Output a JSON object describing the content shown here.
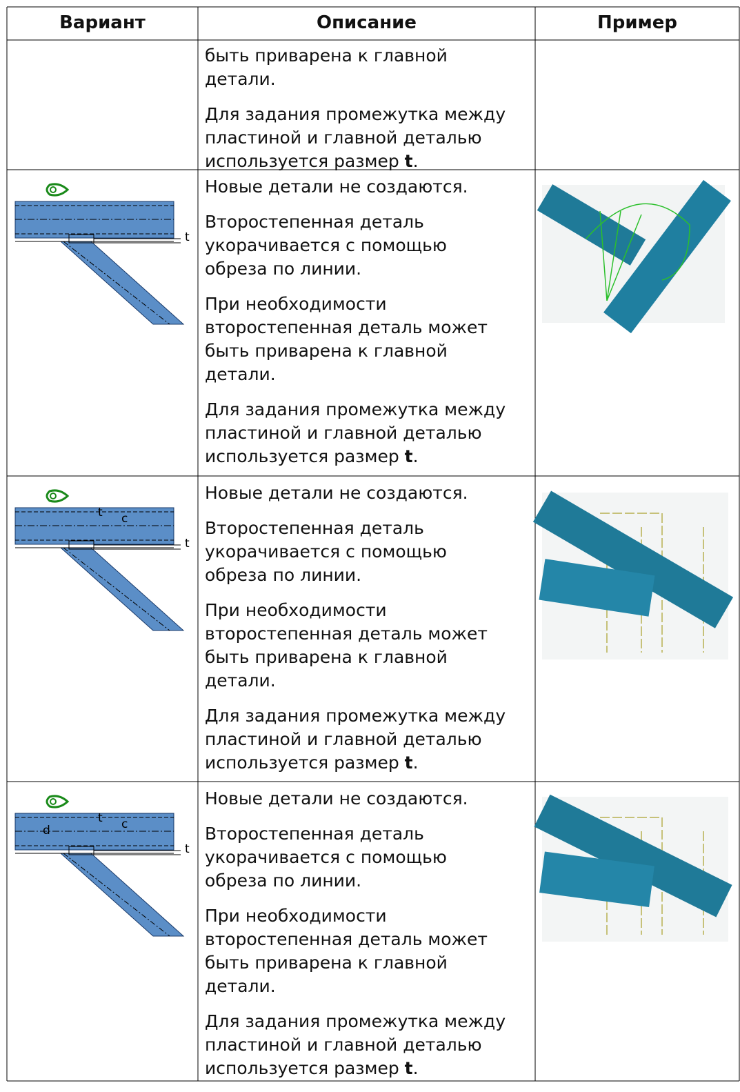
{
  "table": {
    "header": [
      "Вариант",
      "Описание",
      "Пример"
    ],
    "rows": [
      {
        "description": [
          {
            "lines": [
              "быть приварена к главной",
              "детали."
            ]
          },
          {
            "lines": [
              "Для задания промежутка между",
              "пластиной и главной деталью",
              "используется размер "
            ],
            "bold": "t",
            "after": "."
          }
        ]
      },
      {
        "variant_labels": [
          "t"
        ],
        "description": [
          {
            "lines": [
              "Новые детали не создаются."
            ]
          },
          {
            "lines": [
              "Второстепенная деталь",
              "укорачивается с помощью",
              "обреза по линии."
            ]
          },
          {
            "lines": [
              "При необходимости",
              "второстепенная деталь может",
              "быть приварена к главной",
              "детали."
            ]
          },
          {
            "lines": [
              "Для задания промежутка между",
              "пластиной и главной деталью",
              "используется размер "
            ],
            "bold": "t",
            "after": "."
          }
        ]
      },
      {
        "variant_labels": [
          "t",
          "c",
          "t"
        ],
        "description": [
          {
            "lines": [
              "Новые детали не создаются."
            ]
          },
          {
            "lines": [
              "Второстепенная деталь",
              "укорачивается с помощью",
              "обреза по линии."
            ]
          },
          {
            "lines": [
              "При необходимости",
              "второстепенная деталь может",
              "быть приварена к главной",
              "детали."
            ]
          },
          {
            "lines": [
              "Для задания промежутка между",
              "пластиной и главной деталью",
              "используется размер "
            ],
            "bold": "t",
            "after": "."
          }
        ]
      },
      {
        "variant_labels": [
          "d",
          "t",
          "c",
          "t"
        ],
        "description": [
          {
            "lines": [
              "Новые детали не создаются."
            ]
          },
          {
            "lines": [
              "Второстепенная деталь",
              "укорачивается с помощью",
              "обреза по линии."
            ]
          },
          {
            "lines": [
              "При необходимости",
              "второстепенная деталь может",
              "быть приварена к главной",
              "детали."
            ]
          },
          {
            "lines": [
              "Для задания промежутка между",
              "пластиной и главной деталью",
              "используется размер "
            ],
            "bold": "t",
            "after": "."
          }
        ]
      }
    ]
  }
}
